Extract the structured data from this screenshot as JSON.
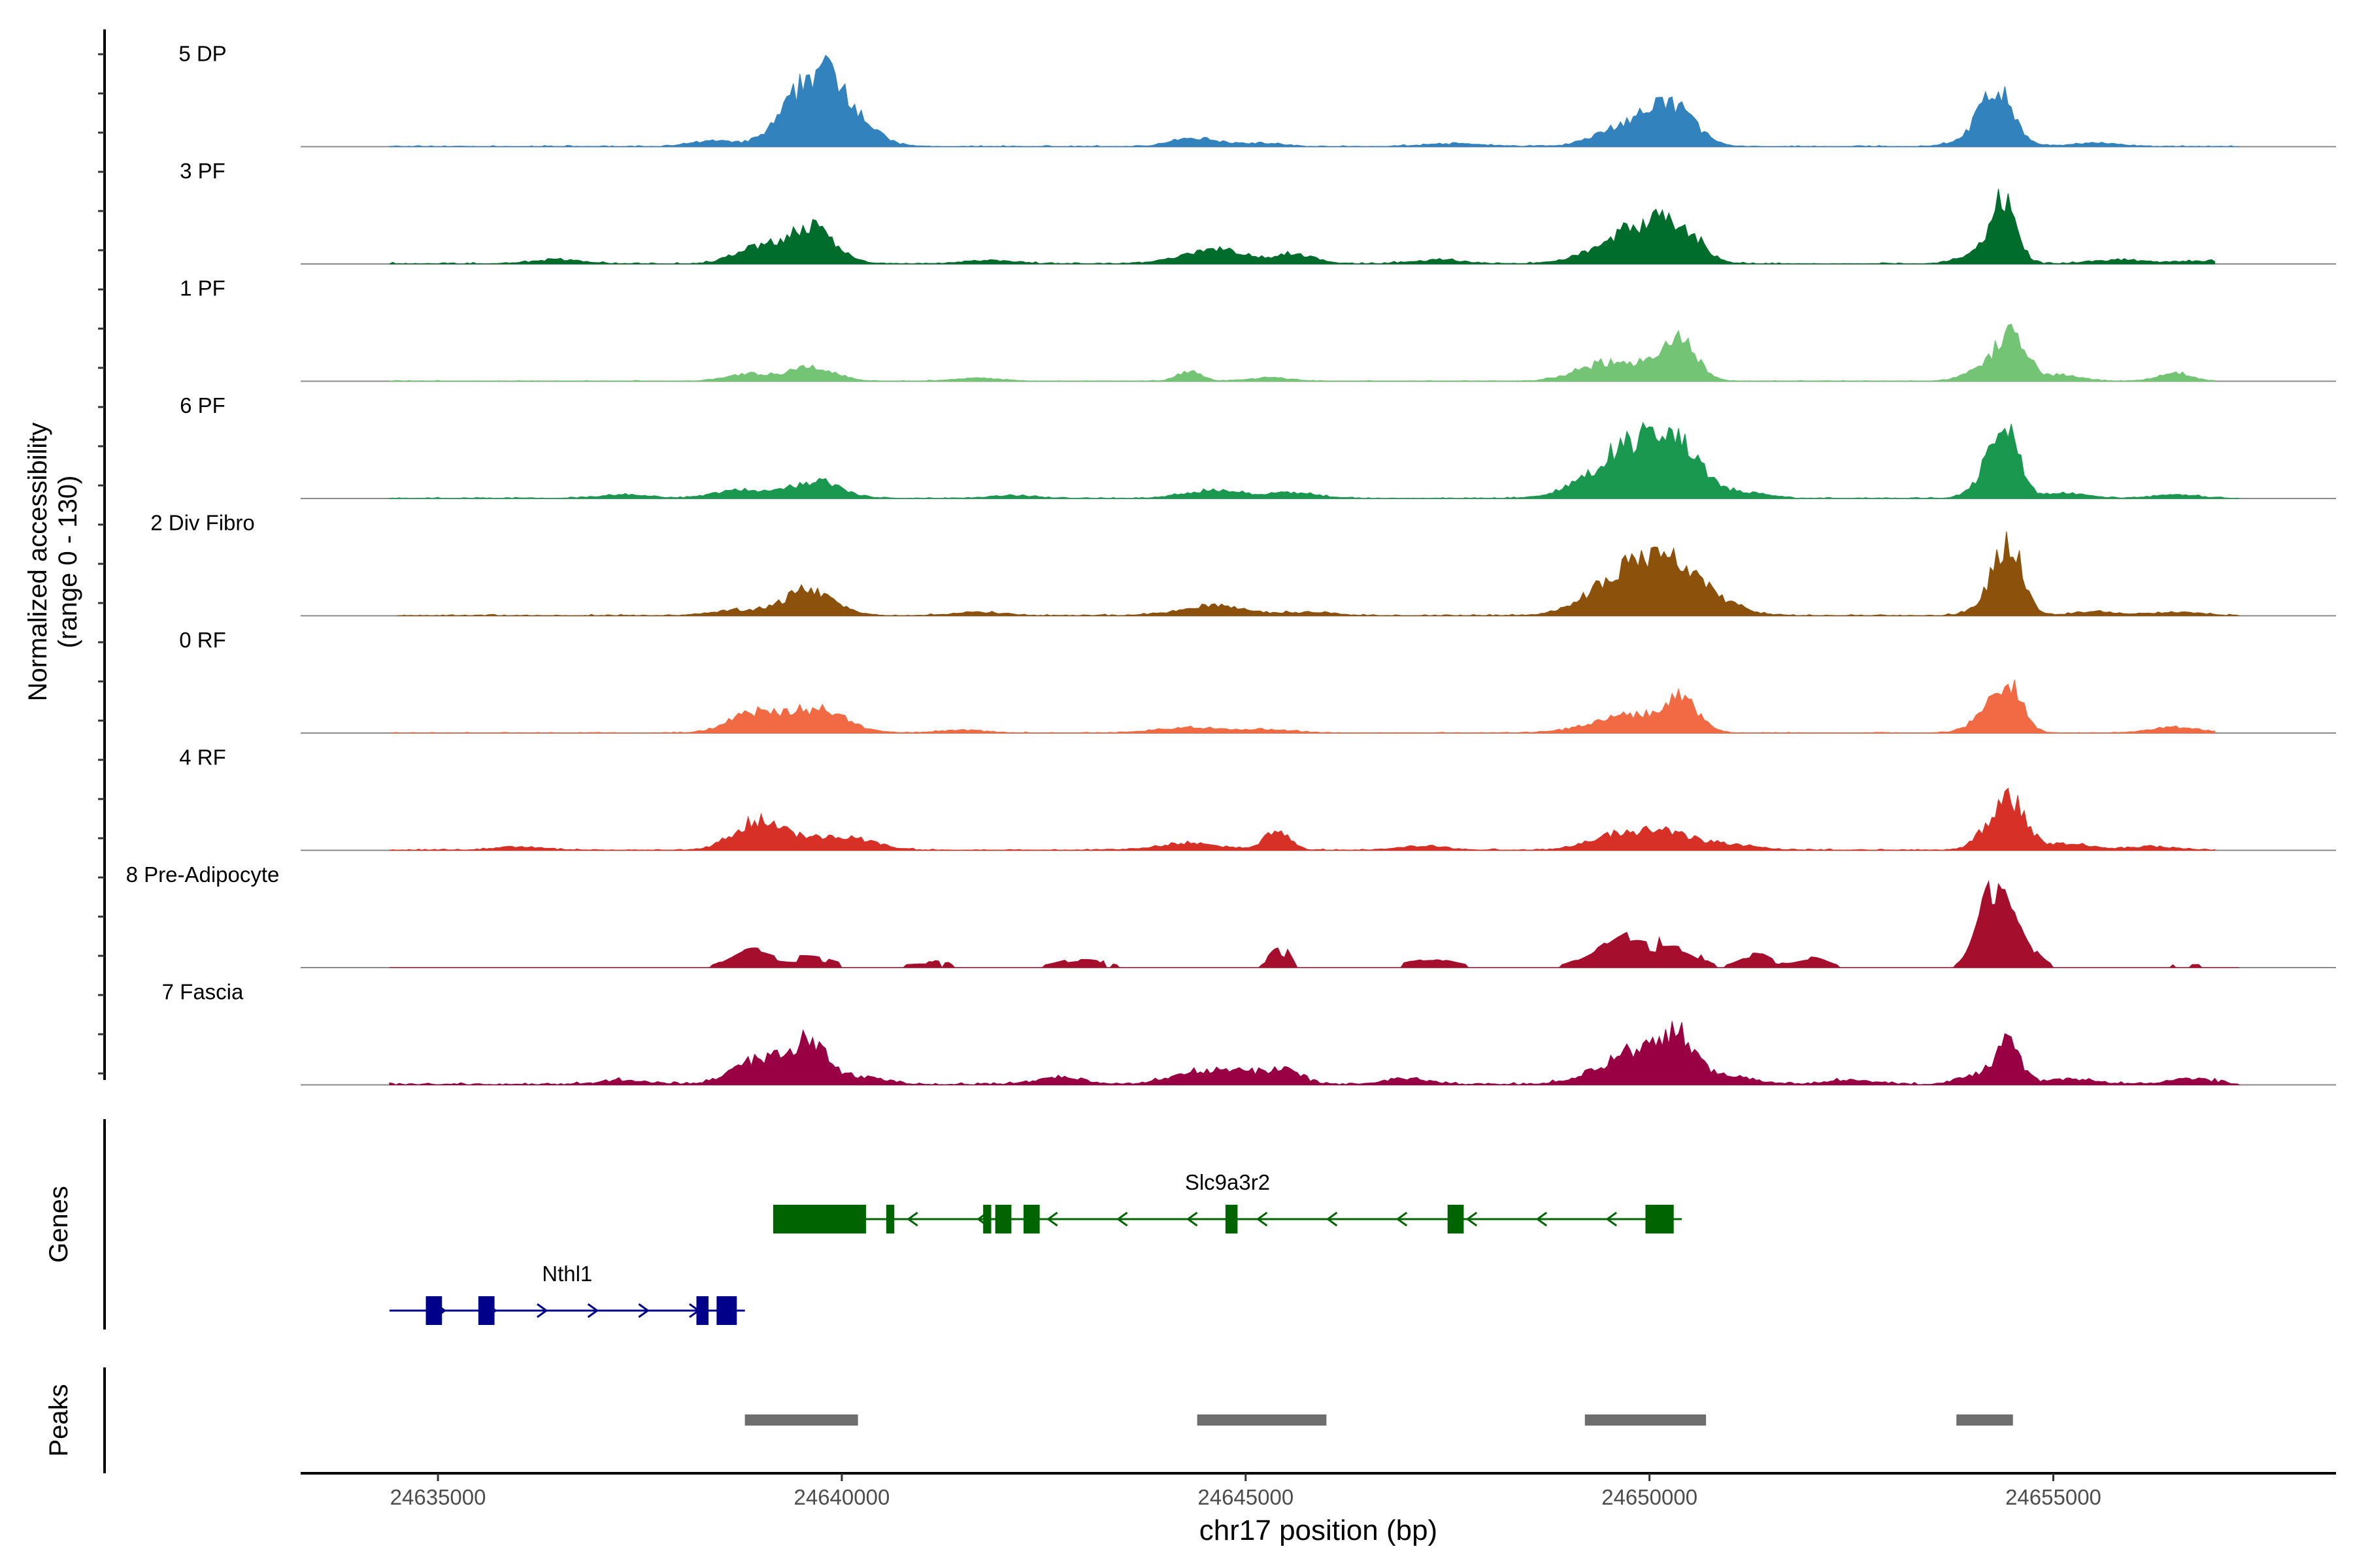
{
  "chart_data": {
    "type": "area",
    "region": {
      "chromosome": "chr17",
      "start": 24633300,
      "end": 24658500
    },
    "xlabel": "chr17 position (bp)",
    "ylabel_line1": "Normalized accessibility",
    "ylabel_line2": "(range 0 - 130)",
    "y_range": [
      0,
      130
    ],
    "x_ticks": [
      {
        "value": 24635000,
        "label": "24635000"
      },
      {
        "value": 24640000,
        "label": "24640000"
      },
      {
        "value": 24645000,
        "label": "24645000"
      },
      {
        "value": 24650000,
        "label": "24650000"
      },
      {
        "value": 24655000,
        "label": "24655000"
      }
    ],
    "section_labels": {
      "genes": "Genes",
      "peaks": "Peaks"
    },
    "tracks": [
      {
        "name": "5 DP",
        "color": "#3182BD",
        "mode": "smooth",
        "noise": 2,
        "start": 24634400,
        "end": 24657300,
        "peaks": [
          [
            24639750,
            115,
            380
          ],
          [
            24638400,
            8,
            250
          ],
          [
            24644400,
            12,
            300
          ],
          [
            24645200,
            5,
            250
          ],
          [
            24647600,
            4,
            400
          ],
          [
            24649600,
            15,
            350
          ],
          [
            24650000,
            30,
            350
          ],
          [
            24650350,
            40,
            250
          ],
          [
            24654300,
            72,
            200
          ],
          [
            24654100,
            12,
            300
          ],
          [
            24655500,
            5,
            300
          ]
        ]
      },
      {
        "name": "3 PF",
        "color": "#006D2C",
        "mode": "smooth",
        "noise": 2.5,
        "start": 24634400,
        "end": 24657000,
        "peaks": [
          [
            24638900,
            22,
            260
          ],
          [
            24639600,
            52,
            300
          ],
          [
            24636500,
            6,
            300
          ],
          [
            24641800,
            5,
            300
          ],
          [
            24644600,
            22,
            380
          ],
          [
            24645600,
            14,
            250
          ],
          [
            24647400,
            6,
            300
          ],
          [
            24649600,
            28,
            400
          ],
          [
            24650000,
            35,
            300
          ],
          [
            24650400,
            42,
            250
          ],
          [
            24654400,
            85,
            150
          ],
          [
            24654150,
            20,
            250
          ],
          [
            24655800,
            6,
            300
          ],
          [
            24656800,
            4,
            300
          ]
        ]
      },
      {
        "name": "1 PF",
        "color": "#74C476",
        "mode": "smooth",
        "noise": 1.5,
        "start": 24634400,
        "end": 24657000,
        "peaks": [
          [
            24638800,
            10,
            250
          ],
          [
            24639600,
            20,
            300
          ],
          [
            24641700,
            4,
            300
          ],
          [
            24644300,
            14,
            150
          ],
          [
            24645300,
            5,
            250
          ],
          [
            24649300,
            18,
            300
          ],
          [
            24649900,
            24,
            350
          ],
          [
            24650400,
            50,
            200
          ],
          [
            24654200,
            22,
            250
          ],
          [
            24654500,
            55,
            180
          ],
          [
            24655100,
            9,
            250
          ],
          [
            24656500,
            12,
            200
          ]
        ]
      },
      {
        "name": "6 PF",
        "color": "#1A9850",
        "mode": "smooth",
        "noise": 2,
        "start": 24634400,
        "end": 24657300,
        "peaks": [
          [
            24638800,
            12,
            350
          ],
          [
            24639700,
            25,
            300
          ],
          [
            24637300,
            5,
            300
          ],
          [
            24642100,
            4,
            300
          ],
          [
            24644600,
            12,
            350
          ],
          [
            24645600,
            8,
            300
          ],
          [
            24649500,
            40,
            400
          ],
          [
            24649900,
            55,
            300
          ],
          [
            24650400,
            72,
            250
          ],
          [
            24651100,
            10,
            300
          ],
          [
            24654200,
            25,
            200
          ],
          [
            24654400,
            100,
            160
          ],
          [
            24655100,
            8,
            300
          ],
          [
            24656500,
            5,
            300
          ]
        ]
      },
      {
        "name": "2 Div Fibro",
        "color": "#8C510A",
        "mode": "smooth",
        "noise": 2.5,
        "start": 24634500,
        "end": 24657300,
        "peaks": [
          [
            24639600,
            38,
            300
          ],
          [
            24638700,
            8,
            300
          ],
          [
            24641700,
            5,
            300
          ],
          [
            24644600,
            14,
            400
          ],
          [
            24645800,
            5,
            300
          ],
          [
            24649500,
            28,
            400
          ],
          [
            24649900,
            55,
            350
          ],
          [
            24650400,
            50,
            300
          ],
          [
            24650900,
            14,
            300
          ],
          [
            24654200,
            18,
            200
          ],
          [
            24654450,
            100,
            170
          ],
          [
            24655500,
            5,
            300
          ],
          [
            24656500,
            5,
            300
          ]
        ]
      },
      {
        "name": "0 RF",
        "color": "#F16A43",
        "mode": "smooth",
        "noise": 1.5,
        "start": 24634400,
        "end": 24657000,
        "peaks": [
          [
            24638900,
            28,
            300
          ],
          [
            24639700,
            35,
            350
          ],
          [
            24641500,
            4,
            300
          ],
          [
            24644300,
            8,
            400
          ],
          [
            24645300,
            5,
            300
          ],
          [
            24649500,
            14,
            400
          ],
          [
            24650000,
            18,
            350
          ],
          [
            24650400,
            40,
            200
          ],
          [
            24654200,
            25,
            220
          ],
          [
            24654450,
            60,
            170
          ],
          [
            24656500,
            8,
            300
          ]
        ]
      },
      {
        "name": "4 RF",
        "color": "#D73027",
        "mode": "smooth",
        "noise": 2.5,
        "start": 24634400,
        "end": 24657000,
        "peaks": [
          [
            24638900,
            35,
            280
          ],
          [
            24639500,
            18,
            400
          ],
          [
            24640200,
            12,
            300
          ],
          [
            24636000,
            5,
            300
          ],
          [
            24644300,
            10,
            400
          ],
          [
            24645400,
            30,
            150
          ],
          [
            24647200,
            6,
            300
          ],
          [
            24649400,
            12,
            300
          ],
          [
            24649800,
            18,
            300
          ],
          [
            24650300,
            20,
            300
          ],
          [
            24651000,
            8,
            300
          ],
          [
            24654200,
            25,
            180
          ],
          [
            24654500,
            65,
            180
          ],
          [
            24655200,
            10,
            250
          ],
          [
            24656200,
            5,
            300
          ]
        ]
      },
      {
        "name": "8 Pre-Adipocyte",
        "color": "#A50F2D",
        "mode": "spiky",
        "start": 24634400,
        "end": 24657300,
        "peaks": [
          [
            24654300,
            110,
            180
          ],
          [
            24654150,
            45,
            160
          ],
          [
            24654600,
            25,
            200
          ],
          [
            24649500,
            22,
            300
          ],
          [
            24649900,
            40,
            250
          ],
          [
            24650400,
            35,
            200
          ],
          [
            24638900,
            30,
            250
          ],
          [
            24639600,
            15,
            300
          ],
          [
            24645400,
            35,
            120
          ],
          [
            24643000,
            12,
            300
          ],
          [
            24641000,
            10,
            300
          ],
          [
            24651300,
            25,
            200
          ],
          [
            24652000,
            14,
            200
          ],
          [
            24647300,
            10,
            300
          ],
          [
            24656800,
            6,
            300
          ]
        ]
      },
      {
        "name": "7 Fascia",
        "color": "#980043",
        "mode": "smooth",
        "noise": 4,
        "start": 24634400,
        "end": 24657300,
        "peaks": [
          [
            24638900,
            25,
            300
          ],
          [
            24639600,
            55,
            200
          ],
          [
            24639200,
            18,
            300
          ],
          [
            24640200,
            12,
            300
          ],
          [
            24637300,
            6,
            300
          ],
          [
            24642700,
            10,
            300
          ],
          [
            24644400,
            18,
            350
          ],
          [
            24645000,
            14,
            300
          ],
          [
            24645500,
            20,
            200
          ],
          [
            24647000,
            8,
            300
          ],
          [
            24649600,
            25,
            400
          ],
          [
            24650000,
            35,
            300
          ],
          [
            24650400,
            55,
            200
          ],
          [
            24651000,
            12,
            300
          ],
          [
            24652500,
            6,
            300
          ],
          [
            24654100,
            15,
            250
          ],
          [
            24654450,
            55,
            150
          ],
          [
            24655200,
            8,
            300
          ],
          [
            24656700,
            8,
            300
          ]
        ]
      }
    ],
    "genes": [
      {
        "name": "Slc9a3r2",
        "strand": "-",
        "color": "#006400",
        "row": 0,
        "start": 24639150,
        "end": 24650400,
        "exons": [
          [
            24639150,
            24640300
          ],
          [
            24640550,
            24640650
          ],
          [
            24641750,
            24641850
          ],
          [
            24641900,
            24642100
          ],
          [
            24642250,
            24642450
          ],
          [
            24644750,
            24644900
          ],
          [
            24647500,
            24647700
          ],
          [
            24649950,
            24650300
          ]
        ]
      },
      {
        "name": "Nthl1",
        "strand": "+",
        "color": "#00008B",
        "row": 1,
        "start": 24634400,
        "end": 24638800,
        "exons": [
          [
            24634850,
            24635050
          ],
          [
            24635500,
            24635700
          ],
          [
            24638200,
            24638350
          ],
          [
            24638450,
            24638700
          ]
        ]
      }
    ],
    "peaks": [
      [
        24638800,
        24640200
      ],
      [
        24644400,
        24646000
      ],
      [
        24649200,
        24650700
      ],
      [
        24653800,
        24654500
      ]
    ]
  }
}
